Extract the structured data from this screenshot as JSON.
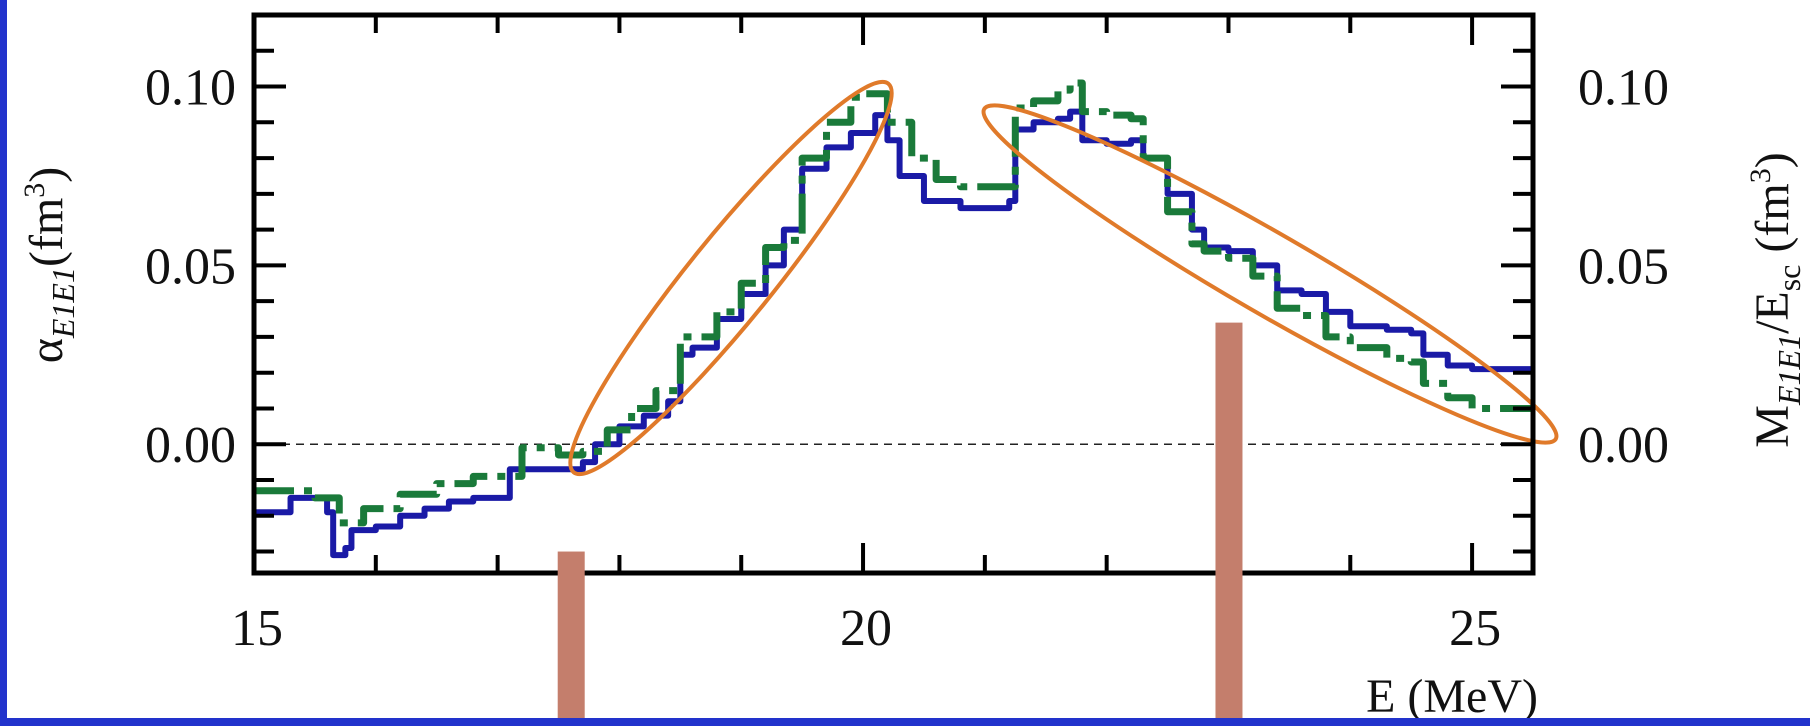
{
  "chart_data": {
    "type": "line",
    "xlabel": "E (MeV)",
    "ylabel_left": {
      "main": "α",
      "sub": "E1E1",
      "unit_open": "(fm",
      "unit_sup": "3",
      "unit_close": ")"
    },
    "ylabel_right": {
      "main": "M",
      "sub1": "E1E1",
      "mid": "/E",
      "sub2": "sc",
      "unit_open": " (fm",
      "unit_sup": "3",
      "unit_close": ")"
    },
    "xlim": [
      15,
      25.5
    ],
    "ylim": [
      -0.036,
      0.12
    ],
    "x_ticks": [
      15,
      20,
      25
    ],
    "y_ticks": [
      0.0,
      0.05,
      0.1
    ],
    "x_tick_labels": [
      "15",
      "20",
      "25"
    ],
    "y_tick_labels": [
      "0.00",
      "0.05",
      "0.10"
    ],
    "reference_line": {
      "y": 0.0,
      "style": "dashed"
    },
    "grid": false,
    "series": [
      {
        "style": "solid",
        "color": "#1a1aa6",
        "x": [
          15.0,
          15.2,
          15.3,
          15.45,
          15.6,
          15.65,
          15.75,
          15.8,
          16.0,
          16.2,
          16.4,
          16.6,
          16.8,
          17.0,
          17.1,
          17.3,
          17.5,
          17.7,
          17.8,
          18.0,
          18.2,
          18.4,
          18.5,
          18.6,
          18.8,
          19.0,
          19.2,
          19.35,
          19.5,
          19.7,
          19.9,
          20.1,
          20.2,
          20.3,
          20.5,
          20.8,
          21.0,
          21.2,
          21.25,
          21.4,
          21.6,
          21.7,
          21.8,
          22.0,
          22.2,
          22.3,
          22.5,
          22.7,
          22.8,
          23.0,
          23.2,
          23.4,
          23.6,
          23.8,
          24.0,
          24.3,
          24.5,
          24.6,
          24.8,
          25.0,
          25.3,
          25.5
        ],
        "y": [
          -0.019,
          -0.019,
          -0.015,
          -0.015,
          -0.019,
          -0.031,
          -0.029,
          -0.024,
          -0.023,
          -0.02,
          -0.018,
          -0.016,
          -0.015,
          -0.015,
          -0.007,
          -0.007,
          -0.007,
          -0.005,
          0.0,
          0.005,
          0.008,
          0.012,
          0.025,
          0.027,
          0.035,
          0.042,
          0.05,
          0.06,
          0.077,
          0.083,
          0.087,
          0.092,
          0.085,
          0.075,
          0.068,
          0.066,
          0.066,
          0.068,
          0.088,
          0.09,
          0.091,
          0.093,
          0.085,
          0.084,
          0.085,
          0.08,
          0.07,
          0.06,
          0.055,
          0.054,
          0.05,
          0.043,
          0.042,
          0.037,
          0.033,
          0.032,
          0.031,
          0.025,
          0.022,
          0.021,
          0.021,
          0.021
        ]
      },
      {
        "style": "dashdot",
        "color": "#1a7a3a",
        "x": [
          15.0,
          15.3,
          15.5,
          15.7,
          15.9,
          16.2,
          16.5,
          16.8,
          17.0,
          17.2,
          17.5,
          17.7,
          17.9,
          18.1,
          18.3,
          18.5,
          18.6,
          18.8,
          19.0,
          19.2,
          19.35,
          19.5,
          19.7,
          19.9,
          20.0,
          20.2,
          20.4,
          20.6,
          20.8,
          21.0,
          21.2,
          21.25,
          21.4,
          21.6,
          21.7,
          21.8,
          22.0,
          22.2,
          22.3,
          22.5,
          22.7,
          22.8,
          23.0,
          23.2,
          23.4,
          23.6,
          23.8,
          24.0,
          24.3,
          24.5,
          24.6,
          24.8,
          25.0,
          25.3,
          25.5
        ],
        "y": [
          -0.013,
          -0.013,
          -0.015,
          -0.022,
          -0.018,
          -0.014,
          -0.011,
          -0.009,
          -0.009,
          -0.001,
          -0.003,
          -0.002,
          0.004,
          0.01,
          0.015,
          0.03,
          0.03,
          0.037,
          0.045,
          0.055,
          0.057,
          0.08,
          0.09,
          0.097,
          0.098,
          0.09,
          0.08,
          0.074,
          0.072,
          0.072,
          0.072,
          0.094,
          0.096,
          0.099,
          0.101,
          0.093,
          0.092,
          0.091,
          0.08,
          0.065,
          0.056,
          0.054,
          0.052,
          0.047,
          0.038,
          0.036,
          0.03,
          0.027,
          0.024,
          0.023,
          0.017,
          0.013,
          0.01,
          0.01,
          0.01
        ]
      }
    ],
    "bars": [
      {
        "x": 17.6,
        "y_top": -0.03
      },
      {
        "x": 23.0,
        "y_top": 0.034
      }
    ]
  },
  "colors": {
    "solid": "#1a1aa6",
    "dashdot": "#1a7a3a",
    "ellipse": "#e07a2a",
    "bar": "#c47e6c",
    "frame": "#2233cc"
  }
}
